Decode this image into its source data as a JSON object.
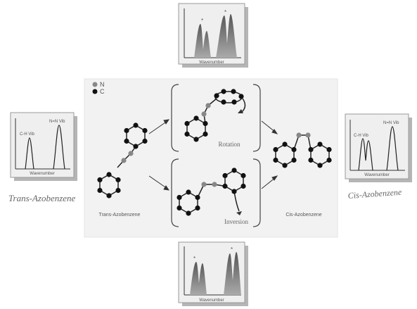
{
  "legend": {
    "n_label": "N",
    "c_label": "C"
  },
  "center": {
    "trans_caption": "Trans-Azobenzene",
    "cis_caption": "Cis-Azobenzene",
    "rotation_label": "Rotation",
    "inversion_label": "Inversion"
  },
  "side_labels": {
    "left": "Trans-Azobenzene",
    "right": "Cis-Azobenzene"
  },
  "spectra": {
    "top": {
      "xlabel": "Wavenumber"
    },
    "bottom": {
      "xlabel": "Wavenumber"
    },
    "left": {
      "xlabel": "Wavenumber",
      "peak1": "C-H Vib",
      "peak2": "N=N Vib"
    },
    "right": {
      "xlabel": "Wavenumber",
      "peak1": "C-H Vib",
      "peak2": "N=N Vib"
    }
  },
  "colors": {
    "carbon": "#111111",
    "nitrogen": "#888888",
    "bond": "#222222",
    "panel": "#efefef"
  }
}
